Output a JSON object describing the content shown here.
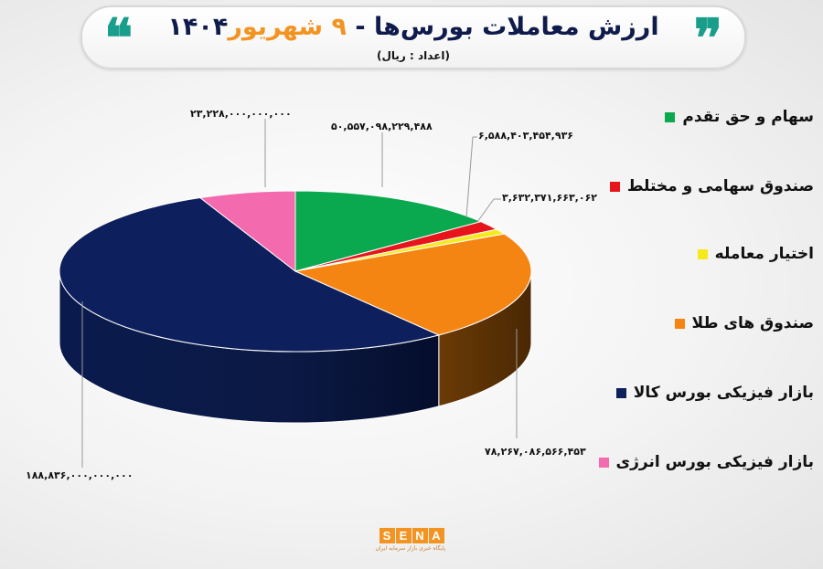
{
  "header": {
    "title_main": "ارزش معاملات بورس‌ها - ",
    "title_highlight": "۹ شهریور",
    "title_year": "۱۴۰۴",
    "subtitle": "(اعداد : ریال)",
    "quote_open": "❞",
    "quote_close": "❝"
  },
  "chart_data": {
    "type": "pie",
    "title": "ارزش معاملات بورس‌ها - ۹ شهریور ۱۴۰۴",
    "subtitle": "(اعداد : ریال)",
    "unit": "ریال",
    "legend_position": "right",
    "slices": [
      {
        "label": "سهام و حق تقدم",
        "value": 50557098229488,
        "display": "۵۰,۵۵۷,۰۹۸,۲۲۹,۴۸۸",
        "color": "#0aa84f"
      },
      {
        "label": "صندوق سهامی و مختلط",
        "value": 6588403454936,
        "display": "۶,۵۸۸,۴۰۳,۴۵۴,۹۳۶",
        "color": "#e8141c"
      },
      {
        "label": "اختیار معامله",
        "value": 3632371663062,
        "display": "۳,۶۳۲,۳۷۱,۶۶۳,۰۶۲",
        "color": "#f5ea1e"
      },
      {
        "label": "صندوق های طلا",
        "value": 78267086566453,
        "display": "۷۸,۲۶۷,۰۸۶,۵۶۶,۴۵۳",
        "color": "#f58512"
      },
      {
        "label": "بازار فیزیکی بورس کالا",
        "value": 188836000000000,
        "display": "۱۸۸,۸۳۶,۰۰۰,۰۰۰,۰۰۰",
        "color": "#0d1f5c"
      },
      {
        "label": "بازار فیزیکی بورس انرژی",
        "value": 23228000000000,
        "display": "۲۳,۲۲۸,۰۰۰,۰۰۰,۰۰۰",
        "color": "#f46aae"
      }
    ]
  },
  "legend": {
    "items": [
      {
        "label": "سهام و حق تقدم",
        "color": "#0aa84f"
      },
      {
        "label": "صندوق سهامی و مختلط",
        "color": "#e8141c"
      },
      {
        "label": "اختیار معامله",
        "color": "#f5ea1e"
      },
      {
        "label": "صندوق های طلا",
        "color": "#f58512"
      },
      {
        "label": "بازار فیزیکی بورس کالا",
        "color": "#0d1f5c"
      },
      {
        "label": "بازار فیزیکی بورس انرژی",
        "color": "#f46aae"
      }
    ]
  },
  "data_labels": [
    "۲۳,۲۲۸,۰۰۰,۰۰۰,۰۰۰",
    "۵۰,۵۵۷,۰۹۸,۲۲۹,۴۸۸",
    "۶,۵۸۸,۴۰۳,۴۵۴,۹۳۶",
    "۳,۶۳۲,۳۷۱,۶۶۳,۰۶۲",
    "۷۸,۲۶۷,۰۸۶,۵۶۶,۴۵۳",
    "۱۸۸,۸۳۶,۰۰۰,۰۰۰,۰۰۰"
  ],
  "footer": {
    "logo_letters": [
      "S",
      "E",
      "N",
      "A"
    ],
    "logo_tagline": "پایگاه خبری بازار سرمایه ایران"
  }
}
